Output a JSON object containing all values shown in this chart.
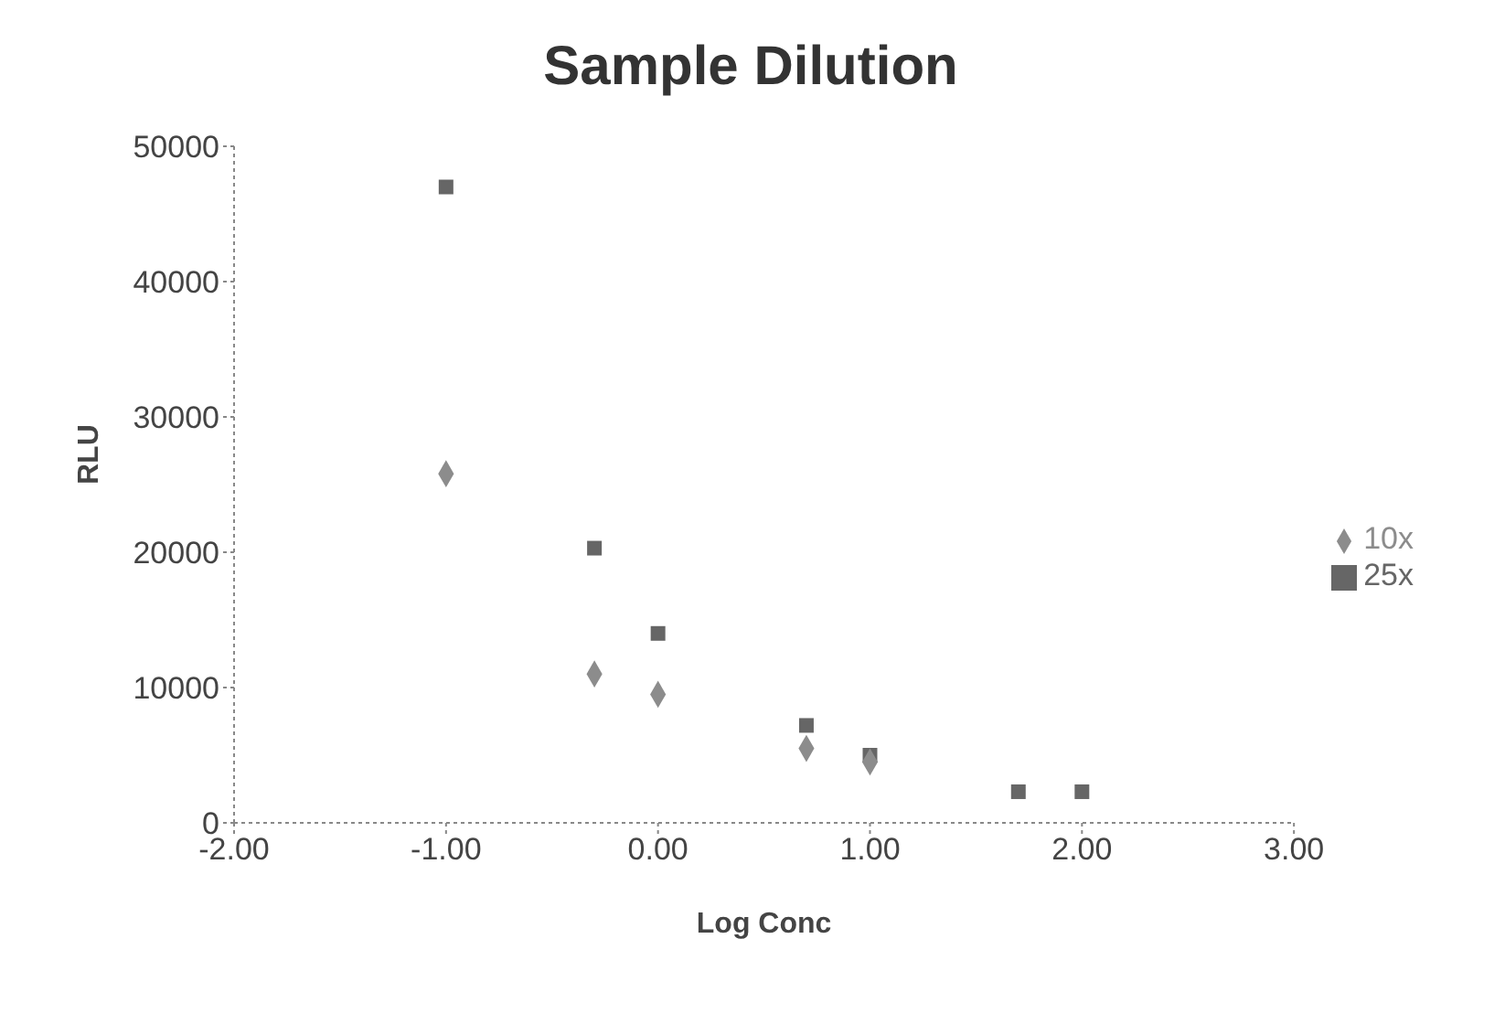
{
  "chart_data": {
    "type": "scatter",
    "title": "Sample Dilution",
    "xlabel": "Log Conc",
    "ylabel": "RLU",
    "xlim": [
      -2,
      3
    ],
    "xticks": [
      {
        "value": -2,
        "label": "-2.00"
      },
      {
        "value": -1,
        "label": "-1.00"
      },
      {
        "value": 0,
        "label": "0.00"
      },
      {
        "value": 1,
        "label": "1.00"
      },
      {
        "value": 2,
        "label": "2.00"
      },
      {
        "value": 3,
        "label": "3.00"
      }
    ],
    "ylim": [
      0,
      50000
    ],
    "yticks": [
      0,
      10000,
      20000,
      30000,
      40000,
      50000
    ],
    "grid": false,
    "legend": "right",
    "series": [
      {
        "name": "10x",
        "color": "#8c8c8c",
        "marker": "diamond",
        "x": [
          -1,
          -0.3,
          0,
          0.7,
          1
        ],
        "values": [
          25800,
          11000,
          9500,
          5500,
          4500
        ]
      },
      {
        "name": "25x",
        "color": "#666666",
        "marker": "square",
        "x": [
          -1,
          -0.3,
          0,
          0.7,
          1,
          1.7,
          2
        ],
        "values": [
          47000,
          20300,
          14000,
          7200,
          5000,
          2300,
          2300
        ]
      }
    ]
  }
}
